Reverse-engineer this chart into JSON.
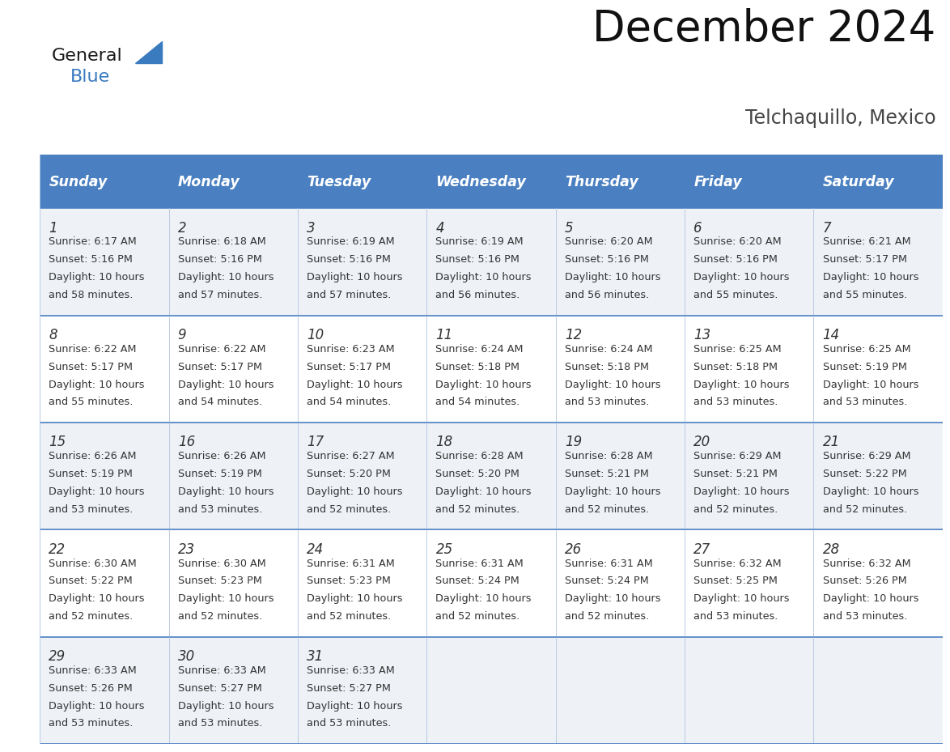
{
  "title": "December 2024",
  "subtitle": "Telchaquillo, Mexico",
  "days_of_week": [
    "Sunday",
    "Monday",
    "Tuesday",
    "Wednesday",
    "Thursday",
    "Friday",
    "Saturday"
  ],
  "header_bg": "#4a7fc1",
  "header_text": "#ffffff",
  "row_bg_light": "#eef2f7",
  "row_bg_white": "#ffffff",
  "border_color": "#4a7fc1",
  "separator_color": "#b0c4de",
  "cell_text_color": "#333333",
  "logo_general_color": "#1a1a1a",
  "logo_blue_color": "#3a7abf",
  "title_color": "#111111",
  "subtitle_color": "#444444",
  "title_fontsize": 38,
  "subtitle_fontsize": 17,
  "header_fontsize": 12.5,
  "day_num_fontsize": 12,
  "cell_fontsize": 9.2,
  "calendar_data": [
    [
      {
        "day": "1",
        "sunrise": "6:17 AM",
        "sunset": "5:16 PM",
        "daylight_h": "10 hours",
        "daylight_m": "58 minutes"
      },
      {
        "day": "2",
        "sunrise": "6:18 AM",
        "sunset": "5:16 PM",
        "daylight_h": "10 hours",
        "daylight_m": "57 minutes"
      },
      {
        "day": "3",
        "sunrise": "6:19 AM",
        "sunset": "5:16 PM",
        "daylight_h": "10 hours",
        "daylight_m": "57 minutes"
      },
      {
        "day": "4",
        "sunrise": "6:19 AM",
        "sunset": "5:16 PM",
        "daylight_h": "10 hours",
        "daylight_m": "56 minutes"
      },
      {
        "day": "5",
        "sunrise": "6:20 AM",
        "sunset": "5:16 PM",
        "daylight_h": "10 hours",
        "daylight_m": "56 minutes"
      },
      {
        "day": "6",
        "sunrise": "6:20 AM",
        "sunset": "5:16 PM",
        "daylight_h": "10 hours",
        "daylight_m": "55 minutes"
      },
      {
        "day": "7",
        "sunrise": "6:21 AM",
        "sunset": "5:17 PM",
        "daylight_h": "10 hours",
        "daylight_m": "55 minutes"
      }
    ],
    [
      {
        "day": "8",
        "sunrise": "6:22 AM",
        "sunset": "5:17 PM",
        "daylight_h": "10 hours",
        "daylight_m": "55 minutes"
      },
      {
        "day": "9",
        "sunrise": "6:22 AM",
        "sunset": "5:17 PM",
        "daylight_h": "10 hours",
        "daylight_m": "54 minutes"
      },
      {
        "day": "10",
        "sunrise": "6:23 AM",
        "sunset": "5:17 PM",
        "daylight_h": "10 hours",
        "daylight_m": "54 minutes"
      },
      {
        "day": "11",
        "sunrise": "6:24 AM",
        "sunset": "5:18 PM",
        "daylight_h": "10 hours",
        "daylight_m": "54 minutes"
      },
      {
        "day": "12",
        "sunrise": "6:24 AM",
        "sunset": "5:18 PM",
        "daylight_h": "10 hours",
        "daylight_m": "53 minutes"
      },
      {
        "day": "13",
        "sunrise": "6:25 AM",
        "sunset": "5:18 PM",
        "daylight_h": "10 hours",
        "daylight_m": "53 minutes"
      },
      {
        "day": "14",
        "sunrise": "6:25 AM",
        "sunset": "5:19 PM",
        "daylight_h": "10 hours",
        "daylight_m": "53 minutes"
      }
    ],
    [
      {
        "day": "15",
        "sunrise": "6:26 AM",
        "sunset": "5:19 PM",
        "daylight_h": "10 hours",
        "daylight_m": "53 minutes"
      },
      {
        "day": "16",
        "sunrise": "6:26 AM",
        "sunset": "5:19 PM",
        "daylight_h": "10 hours",
        "daylight_m": "53 minutes"
      },
      {
        "day": "17",
        "sunrise": "6:27 AM",
        "sunset": "5:20 PM",
        "daylight_h": "10 hours",
        "daylight_m": "52 minutes"
      },
      {
        "day": "18",
        "sunrise": "6:28 AM",
        "sunset": "5:20 PM",
        "daylight_h": "10 hours",
        "daylight_m": "52 minutes"
      },
      {
        "day": "19",
        "sunrise": "6:28 AM",
        "sunset": "5:21 PM",
        "daylight_h": "10 hours",
        "daylight_m": "52 minutes"
      },
      {
        "day": "20",
        "sunrise": "6:29 AM",
        "sunset": "5:21 PM",
        "daylight_h": "10 hours",
        "daylight_m": "52 minutes"
      },
      {
        "day": "21",
        "sunrise": "6:29 AM",
        "sunset": "5:22 PM",
        "daylight_h": "10 hours",
        "daylight_m": "52 minutes"
      }
    ],
    [
      {
        "day": "22",
        "sunrise": "6:30 AM",
        "sunset": "5:22 PM",
        "daylight_h": "10 hours",
        "daylight_m": "52 minutes"
      },
      {
        "day": "23",
        "sunrise": "6:30 AM",
        "sunset": "5:23 PM",
        "daylight_h": "10 hours",
        "daylight_m": "52 minutes"
      },
      {
        "day": "24",
        "sunrise": "6:31 AM",
        "sunset": "5:23 PM",
        "daylight_h": "10 hours",
        "daylight_m": "52 minutes"
      },
      {
        "day": "25",
        "sunrise": "6:31 AM",
        "sunset": "5:24 PM",
        "daylight_h": "10 hours",
        "daylight_m": "52 minutes"
      },
      {
        "day": "26",
        "sunrise": "6:31 AM",
        "sunset": "5:24 PM",
        "daylight_h": "10 hours",
        "daylight_m": "52 minutes"
      },
      {
        "day": "27",
        "sunrise": "6:32 AM",
        "sunset": "5:25 PM",
        "daylight_h": "10 hours",
        "daylight_m": "53 minutes"
      },
      {
        "day": "28",
        "sunrise": "6:32 AM",
        "sunset": "5:26 PM",
        "daylight_h": "10 hours",
        "daylight_m": "53 minutes"
      }
    ],
    [
      {
        "day": "29",
        "sunrise": "6:33 AM",
        "sunset": "5:26 PM",
        "daylight_h": "10 hours",
        "daylight_m": "53 minutes"
      },
      {
        "day": "30",
        "sunrise": "6:33 AM",
        "sunset": "5:27 PM",
        "daylight_h": "10 hours",
        "daylight_m": "53 minutes"
      },
      {
        "day": "31",
        "sunrise": "6:33 AM",
        "sunset": "5:27 PM",
        "daylight_h": "10 hours",
        "daylight_m": "53 minutes"
      },
      null,
      null,
      null,
      null
    ]
  ]
}
